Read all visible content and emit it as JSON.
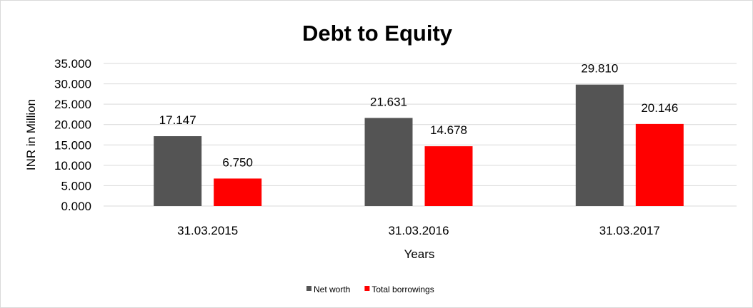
{
  "chart_data": {
    "type": "bar",
    "title": "Debt to Equity",
    "xlabel": "Years",
    "ylabel": "INR in Million",
    "categories": [
      "31.03.2015",
      "31.03.2016",
      "31.03.2017"
    ],
    "series": [
      {
        "name": "Net worth",
        "values": [
          17.147,
          21.631,
          29.81
        ],
        "labels": [
          "17.147",
          "21.631",
          "29.810"
        ],
        "color": "#545454"
      },
      {
        "name": "Total borrowings",
        "values": [
          6.75,
          14.678,
          20.146
        ],
        "labels": [
          "6.750",
          "14.678",
          "20.146"
        ],
        "color": "#ff0000"
      }
    ],
    "ylim": [
      0,
      35
    ],
    "yticks": [
      "0.000",
      "5.000",
      "10.000",
      "15.000",
      "20.000",
      "25.000",
      "30.000",
      "35.000"
    ],
    "grid": true,
    "legend_placement": "bottom"
  }
}
